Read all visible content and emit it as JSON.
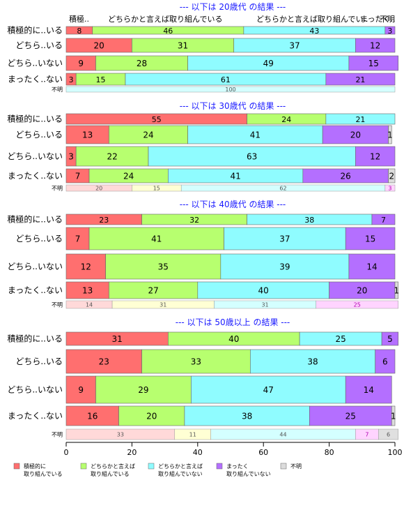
{
  "chart_data": {
    "type": "bar",
    "stacked": true,
    "orientation": "horizontal",
    "xlim": [
      0,
      100
    ],
    "x_ticks": [
      0,
      20,
      40,
      60,
      80,
      100
    ],
    "categories": [
      "積極的に..いる",
      "どちら..いる",
      "どちら..いない",
      "まったく..ない"
    ],
    "unknown_label": "不明",
    "colors": [
      "#ff6f6f",
      "#b7ff6f",
      "#8ffcff",
      "#b46fff",
      "#dcdcdc"
    ],
    "pale_colors": [
      "#ffd9d9",
      "#ffffd4",
      "#d4ffff",
      "#ffd4ff",
      "#e0e0e0"
    ],
    "pale_text_colors": [
      "#555555",
      "#555555",
      "#555555",
      "#b000b0",
      "#555555"
    ],
    "legend": [
      {
        "label_lines": [
          "積極的に",
          "取り組んでいる"
        ]
      },
      {
        "label_lines": [
          "どちらかと言えば",
          "取り組んでいる"
        ]
      },
      {
        "label_lines": [
          "どちらかと言えば",
          "取り組んでいない"
        ]
      },
      {
        "label_lines": [
          "まったく",
          "取り組んでいない"
        ]
      },
      {
        "label_lines": [
          "不明"
        ]
      }
    ],
    "panels": [
      {
        "title": "--- 以下は 20歳代 の結果 ---",
        "header_labels": [
          "積極..",
          "どちらかと言えば取り組んでいる",
          "どちらかと言えば取り組んでい..",
          "まったく..",
          "不明"
        ],
        "rows": [
          [
            8,
            46,
            43,
            3,
            0
          ],
          [
            20,
            31,
            37,
            12,
            0
          ],
          [
            9,
            28,
            49,
            15,
            0
          ],
          [
            3,
            15,
            61,
            21,
            0
          ]
        ],
        "unknown": [
          0,
          0,
          100,
          0,
          0
        ]
      },
      {
        "title": "--- 以下は 30歳代 の結果 ---",
        "header_labels": [],
        "rows": [
          [
            55,
            24,
            21,
            0,
            0
          ],
          [
            13,
            24,
            41,
            20,
            1
          ],
          [
            3,
            22,
            63,
            12,
            0
          ],
          [
            7,
            24,
            41,
            26,
            2
          ]
        ],
        "unknown": [
          20,
          15,
          62,
          3,
          0
        ]
      },
      {
        "title": "--- 以下は 40歳代 の結果 ---",
        "header_labels": [],
        "rows": [
          [
            23,
            32,
            38,
            7,
            0
          ],
          [
            7,
            41,
            37,
            15,
            0
          ],
          [
            12,
            35,
            39,
            14,
            0
          ],
          [
            13,
            27,
            40,
            20,
            1
          ]
        ],
        "unknown": [
          14,
          31,
          31,
          25,
          0
        ]
      },
      {
        "title": "--- 以下は 50歳以上 の結果 ---",
        "header_labels": [],
        "rows": [
          [
            31,
            40,
            25,
            5,
            0
          ],
          [
            23,
            33,
            38,
            6,
            0
          ],
          [
            9,
            29,
            47,
            14,
            0
          ],
          [
            16,
            20,
            38,
            25,
            1
          ]
        ],
        "unknown": [
          33,
          11,
          44,
          7,
          6
        ]
      }
    ]
  }
}
